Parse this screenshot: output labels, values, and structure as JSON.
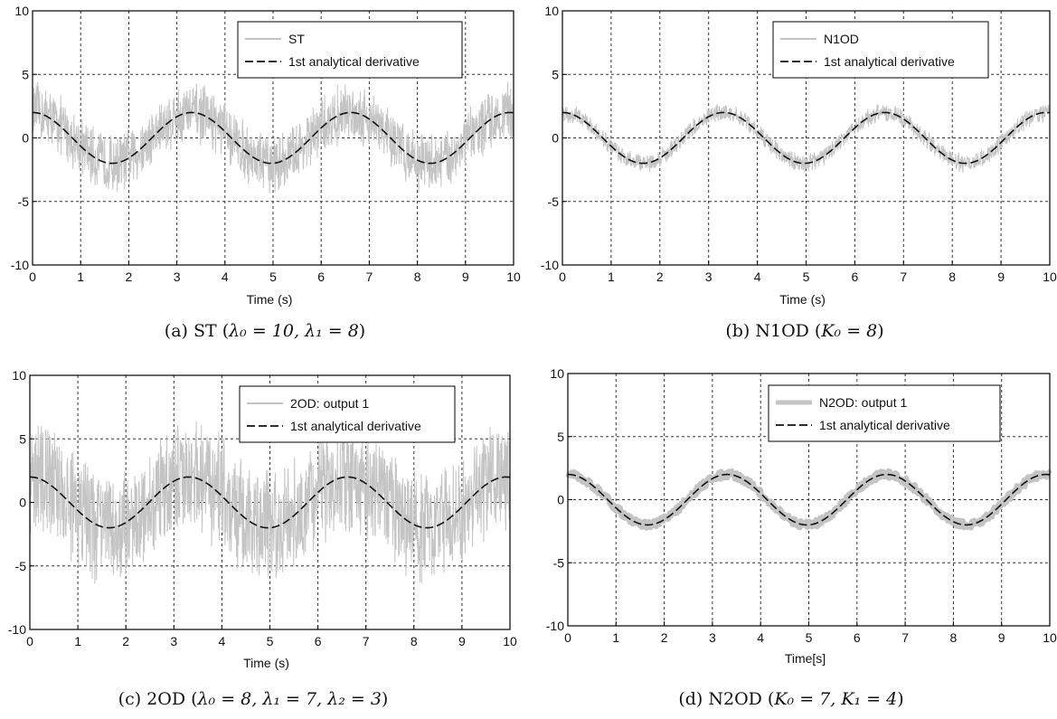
{
  "colors": {
    "noisy": "#c4c4c4",
    "analytical": "#111111",
    "grid": "#333333"
  },
  "chart_data": [
    {
      "id": "a",
      "type": "line",
      "xlabel": "Time (s)",
      "xlim": [
        0,
        10
      ],
      "ylim": [
        -10,
        10
      ],
      "xticks": [
        "0",
        "1",
        "2",
        "3",
        "4",
        "5",
        "6",
        "7",
        "8",
        "9",
        "10"
      ],
      "yticks": [
        "-10",
        "-5",
        "0",
        "5",
        "10"
      ],
      "series": [
        {
          "name": "ST",
          "style": "noisy",
          "function": "2*cos(1.9*t)",
          "amplitude": 2,
          "omega": 1.9,
          "noise_band": 2.6
        },
        {
          "name": "1st analytical derivative",
          "style": "dashed",
          "function": "2*cos(1.9*t)",
          "amplitude": 2,
          "omega": 1.9
        }
      ],
      "caption": {
        "label": "(a) ST",
        "params": "λ₀ = 10, λ₁ = 8"
      }
    },
    {
      "id": "b",
      "type": "line",
      "xlabel": "Time (s)",
      "xlim": [
        0,
        10
      ],
      "ylim": [
        -10,
        10
      ],
      "xticks": [
        "0",
        "1",
        "2",
        "3",
        "4",
        "5",
        "6",
        "7",
        "8",
        "9",
        "10"
      ],
      "yticks": [
        "-10",
        "-5",
        "0",
        "5",
        "10"
      ],
      "series": [
        {
          "name": "N1OD",
          "style": "noisy",
          "function": "2*cos(1.9*t)",
          "amplitude": 2,
          "omega": 1.9,
          "noise_band": 0.8
        },
        {
          "name": "1st analytical derivative",
          "style": "dashed",
          "function": "2*cos(1.9*t)",
          "amplitude": 2,
          "omega": 1.9
        }
      ],
      "caption": {
        "label": "(b) N1OD",
        "params": "K₀ = 8"
      }
    },
    {
      "id": "c",
      "type": "line",
      "xlabel": "Time (s)",
      "xlim": [
        0,
        10
      ],
      "ylim": [
        -10,
        10
      ],
      "xticks": [
        "0",
        "1",
        "2",
        "3",
        "4",
        "5",
        "6",
        "7",
        "8",
        "9",
        "10"
      ],
      "yticks": [
        "-10",
        "-5",
        "0",
        "5",
        "10"
      ],
      "series": [
        {
          "name": "2OD: output 1",
          "style": "noisy",
          "function": "2*cos(1.9*t)",
          "amplitude": 2,
          "omega": 1.9,
          "noise_band": 5.0
        },
        {
          "name": "1st analytical derivative",
          "style": "dashed",
          "function": "2*cos(1.9*t)",
          "amplitude": 2,
          "omega": 1.9
        }
      ],
      "caption": {
        "label": "(c) 2OD",
        "params": "λ₀ = 8, λ₁ = 7, λ₂ = 3"
      }
    },
    {
      "id": "d",
      "type": "line",
      "xlabel": "Time[s]",
      "xlim": [
        0,
        10
      ],
      "ylim": [
        -10,
        10
      ],
      "xticks": [
        "0",
        "1",
        "2",
        "3",
        "4",
        "5",
        "6",
        "7",
        "8",
        "9",
        "10"
      ],
      "yticks": [
        "-10",
        "-5",
        "0",
        "5",
        "10"
      ],
      "series": [
        {
          "name": "N2OD: output 1",
          "style": "thick",
          "function": "2*cos(1.9*t)",
          "amplitude": 2,
          "omega": 1.9,
          "noise_band": 0.3
        },
        {
          "name": "1st analytical derivative",
          "style": "dashed",
          "function": "2*cos(1.9*t)",
          "amplitude": 2,
          "omega": 1.9
        }
      ],
      "caption": {
        "label": "(d) N2OD",
        "params": "K₀ = 7, K₁ = 4"
      }
    }
  ]
}
